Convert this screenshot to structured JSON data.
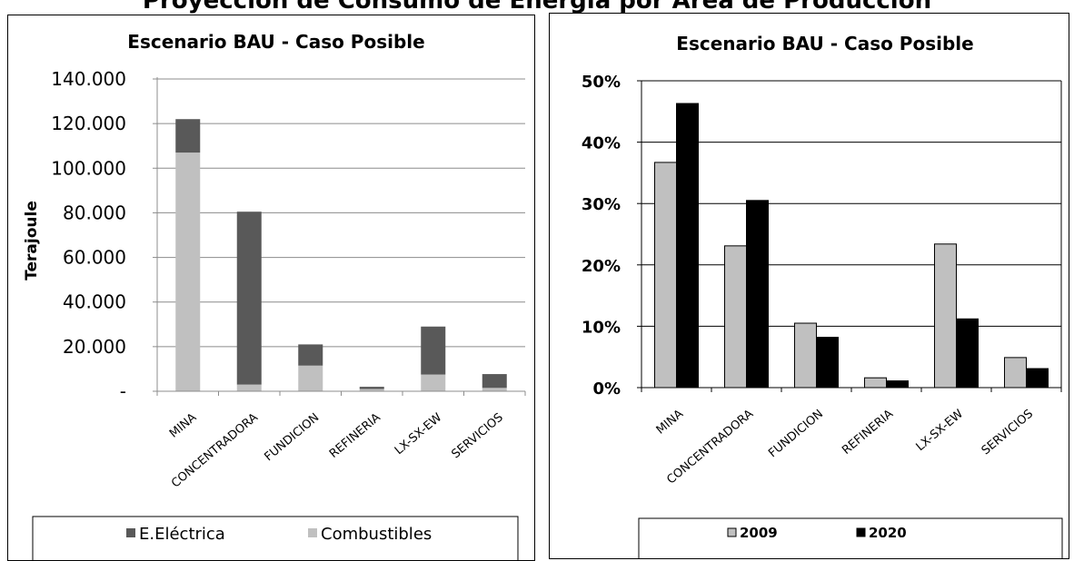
{
  "page": {
    "title": "Proyección de Consumo de Energía por Área de Producción"
  },
  "chart_data": [
    {
      "type": "bar",
      "stacked": true,
      "title": "Escenario BAU - Caso Posible",
      "xlabel": "",
      "ylabel": "Terajoule",
      "categories": [
        "MINA",
        "CONCENTRADORA",
        "FUNDICION",
        "REFINERIA",
        "LX-SX-EW",
        "SERVICIOS"
      ],
      "series": [
        {
          "name": "Combustibles",
          "values": [
            107000,
            3000,
            11500,
            1000,
            7500,
            1500
          ],
          "color": "#c0c0c0"
        },
        {
          "name": "E.Eléctrica",
          "values": [
            15000,
            77500,
            9500,
            1000,
            21500,
            6200
          ],
          "color": "#595959"
        }
      ],
      "legend_order": [
        "E.Eléctrica",
        "Combustibles"
      ],
      "ylim": [
        0,
        140000
      ],
      "yticks": [
        0,
        20000,
        40000,
        60000,
        80000,
        100000,
        120000,
        140000
      ],
      "ytick_labels": [
        "-",
        "20.000",
        "40.000",
        "60.000",
        "80.000",
        "100.000",
        "120.000",
        "140.000"
      ],
      "grid": true,
      "legend": "bottom"
    },
    {
      "type": "bar",
      "stacked": false,
      "title": "Escenario BAU - Caso Posible",
      "xlabel": "",
      "ylabel": "",
      "categories": [
        "MINA",
        "CONCENTRADORA",
        "FUNDICION",
        "REFINERIA",
        "LX-SX-EW",
        "SERVICIOS"
      ],
      "series": [
        {
          "name": "2009",
          "values": [
            0.367,
            0.231,
            0.105,
            0.016,
            0.234,
            0.049
          ],
          "color": "#c0c0c0"
        },
        {
          "name": "2020",
          "values": [
            0.463,
            0.305,
            0.082,
            0.011,
            0.112,
            0.031
          ],
          "color": "#000000"
        }
      ],
      "ylim": [
        0,
        0.5
      ],
      "yticks": [
        0,
        0.1,
        0.2,
        0.3,
        0.4,
        0.5
      ],
      "ytick_labels": [
        "0%",
        "10%",
        "20%",
        "30%",
        "40%",
        "50%"
      ],
      "grid": true,
      "legend": "bottom"
    }
  ]
}
